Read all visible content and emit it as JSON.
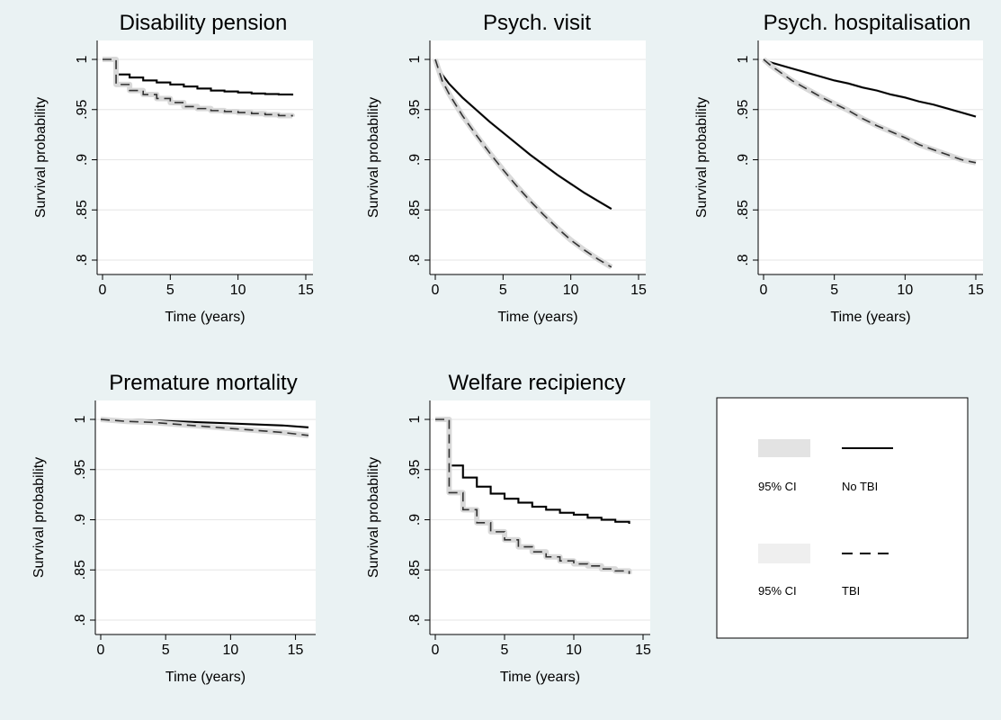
{
  "chart_data": [
    {
      "type": "line",
      "title": "Disability pension",
      "xlabel": "Time (years)",
      "ylabel": "Survival probability",
      "xlim": [
        0,
        15
      ],
      "ylim": [
        0.8,
        1
      ],
      "xticks": [
        "0",
        "5",
        "10",
        "15"
      ],
      "yticks": [
        ".8",
        ".85",
        ".9",
        ".95",
        "1"
      ],
      "step": true,
      "series": [
        {
          "name": "No TBI",
          "x": [
            0,
            1,
            2,
            3,
            4,
            5,
            6,
            7,
            8,
            9,
            10,
            11,
            12,
            13,
            14
          ],
          "y": [
            1.0,
            0.985,
            0.982,
            0.979,
            0.977,
            0.975,
            0.973,
            0.971,
            0.969,
            0.968,
            0.967,
            0.966,
            0.9655,
            0.965,
            0.964
          ]
        },
        {
          "name": "TBI",
          "x": [
            0,
            1,
            2,
            3,
            4,
            5,
            6,
            7,
            8,
            9,
            10,
            11,
            12,
            13,
            14
          ],
          "y": [
            1.0,
            0.975,
            0.969,
            0.965,
            0.961,
            0.957,
            0.953,
            0.951,
            0.949,
            0.948,
            0.947,
            0.946,
            0.945,
            0.944,
            0.943
          ]
        }
      ]
    },
    {
      "type": "line",
      "title": "Psych. visit",
      "xlabel": "Time (years)",
      "ylabel": "Survival probability",
      "xlim": [
        0,
        15
      ],
      "ylim": [
        0.8,
        1
      ],
      "xticks": [
        "0",
        "5",
        "10",
        "15"
      ],
      "yticks": [
        ".8",
        ".85",
        ".9",
        ".95",
        "1"
      ],
      "step": false,
      "series": [
        {
          "name": "No TBI",
          "x": [
            0,
            0.5,
            1,
            2,
            3,
            4,
            5,
            6,
            7,
            8,
            9,
            10,
            11,
            12,
            13
          ],
          "y": [
            1.0,
            0.985,
            0.976,
            0.962,
            0.95,
            0.938,
            0.927,
            0.916,
            0.905,
            0.895,
            0.885,
            0.876,
            0.867,
            0.859,
            0.851
          ]
        },
        {
          "name": "TBI",
          "x": [
            0,
            0.5,
            1,
            2,
            3,
            4,
            5,
            6,
            7,
            8,
            9,
            10,
            11,
            12,
            13
          ],
          "y": [
            1.0,
            0.979,
            0.966,
            0.944,
            0.925,
            0.907,
            0.89,
            0.874,
            0.859,
            0.845,
            0.832,
            0.82,
            0.81,
            0.801,
            0.793
          ]
        }
      ]
    },
    {
      "type": "line",
      "title": "Psych. hospitalisation",
      "xlabel": "Time (years)",
      "ylabel": "Survival probability",
      "xlim": [
        0,
        15
      ],
      "ylim": [
        0.8,
        1
      ],
      "xticks": [
        "0",
        "5",
        "10",
        "15"
      ],
      "yticks": [
        ".8",
        ".85",
        ".9",
        ".95",
        "1"
      ],
      "step": false,
      "series": [
        {
          "name": "No TBI",
          "x": [
            0,
            0.5,
            1,
            2,
            3,
            4,
            5,
            6,
            7,
            8,
            9,
            10,
            11,
            12,
            13,
            14,
            15
          ],
          "y": [
            1.0,
            0.997,
            0.995,
            0.991,
            0.987,
            0.983,
            0.979,
            0.976,
            0.972,
            0.969,
            0.965,
            0.962,
            0.958,
            0.955,
            0.951,
            0.947,
            0.943
          ]
        },
        {
          "name": "TBI",
          "x": [
            0,
            0.5,
            1,
            2,
            3,
            4,
            5,
            6,
            7,
            8,
            9,
            10,
            11,
            12,
            13,
            14,
            15
          ],
          "y": [
            1.0,
            0.994,
            0.989,
            0.979,
            0.971,
            0.963,
            0.956,
            0.949,
            0.941,
            0.934,
            0.928,
            0.922,
            0.915,
            0.91,
            0.905,
            0.9,
            0.897
          ]
        }
      ]
    },
    {
      "type": "line",
      "title": "Premature mortality",
      "xlabel": "Time (years)",
      "ylabel": "Survival probability",
      "xlim": [
        0,
        16
      ],
      "ylim": [
        0.8,
        1
      ],
      "xticks": [
        "0",
        "5",
        "10",
        "15"
      ],
      "yticks": [
        ".8",
        ".85",
        ".9",
        ".95",
        "1"
      ],
      "step": false,
      "series": [
        {
          "name": "No TBI",
          "x": [
            0,
            2,
            4,
            6,
            8,
            10,
            12,
            14,
            16
          ],
          "y": [
            1.0,
            0.9995,
            0.999,
            0.998,
            0.997,
            0.996,
            0.995,
            0.994,
            0.992
          ]
        },
        {
          "name": "TBI",
          "x": [
            0,
            2,
            4,
            6,
            8,
            10,
            12,
            14,
            16
          ],
          "y": [
            1.0,
            0.998,
            0.997,
            0.995,
            0.993,
            0.991,
            0.989,
            0.987,
            0.984
          ]
        }
      ]
    },
    {
      "type": "line",
      "title": "Welfare recipiency",
      "xlabel": "Time (years)",
      "ylabel": "Survival probability",
      "xlim": [
        0,
        15
      ],
      "ylim": [
        0.8,
        1
      ],
      "xticks": [
        "0",
        "5",
        "10",
        "15"
      ],
      "yticks": [
        ".8",
        ".85",
        ".9",
        ".95",
        "1"
      ],
      "step": true,
      "series": [
        {
          "name": "No TBI",
          "x": [
            0,
            1,
            2,
            3,
            4,
            5,
            6,
            7,
            8,
            9,
            10,
            11,
            12,
            13,
            14
          ],
          "y": [
            1.0,
            0.954,
            0.942,
            0.933,
            0.926,
            0.921,
            0.917,
            0.913,
            0.91,
            0.907,
            0.905,
            0.902,
            0.9,
            0.898,
            0.896
          ]
        },
        {
          "name": "TBI",
          "x": [
            0,
            1,
            2,
            3,
            4,
            5,
            6,
            7,
            8,
            9,
            10,
            11,
            12,
            13,
            14
          ],
          "y": [
            1.0,
            0.927,
            0.91,
            0.897,
            0.888,
            0.88,
            0.873,
            0.868,
            0.863,
            0.859,
            0.856,
            0.854,
            0.851,
            0.849,
            0.846
          ]
        }
      ]
    }
  ],
  "legend": {
    "items": [
      {
        "ci_label": "95% CI",
        "line_label": "No TBI",
        "line_style": "solid",
        "ci_color": "#e3e3e3"
      },
      {
        "ci_label": "95% CI",
        "line_label": "TBI",
        "line_style": "dashed",
        "ci_color": "#efefef"
      }
    ]
  },
  "colors": {
    "background": "#eaf2f3",
    "plot_area": "#ffffff",
    "line": "#000000",
    "tbi_line": "#333333",
    "ci_band": "#d9d9d9"
  }
}
